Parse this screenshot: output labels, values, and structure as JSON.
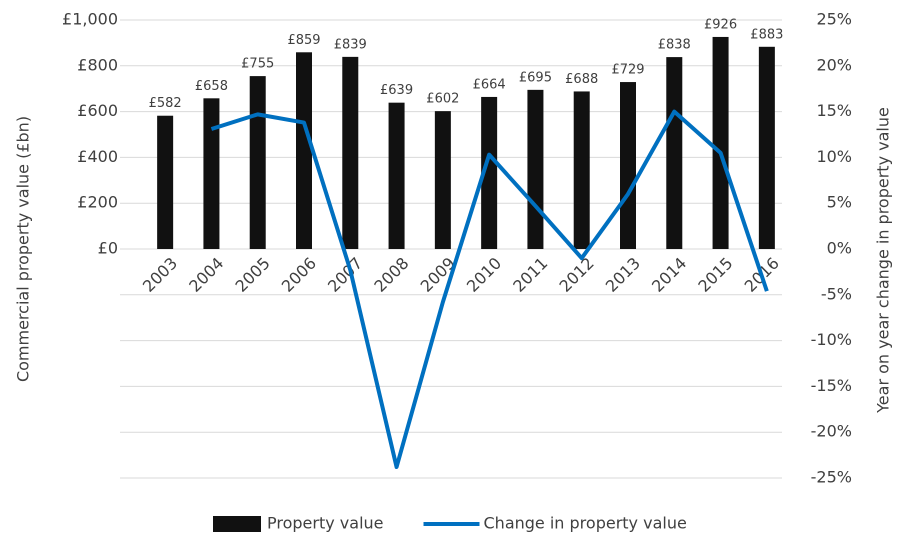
{
  "chart_data": {
    "type": "combo",
    "y_label": "Commercial property value (£bn)",
    "y2_label": "Year on year change in property value",
    "categories": [
      "2003",
      "2004",
      "2005",
      "2006",
      "2007",
      "2008",
      "2009",
      "2010",
      "2011",
      "2012",
      "2013",
      "2014",
      "2015",
      "2016"
    ],
    "series": [
      {
        "name": "Property value",
        "type": "bar",
        "color": "#111111",
        "values": [
          582,
          658,
          755,
          859,
          839,
          639,
          602,
          664,
          695,
          688,
          729,
          838,
          926,
          883
        ],
        "value_labels": [
          "£582",
          "£658",
          "£755",
          "£859",
          "£839",
          "£639",
          "£602",
          "£664",
          "£695",
          "£688",
          "£729",
          "£838",
          "£926",
          "£883"
        ]
      },
      {
        "name": "Change in property value",
        "type": "line",
        "color": "#0070c0",
        "axis": "y2",
        "values": [
          null,
          13.1,
          14.7,
          13.8,
          -2.3,
          -23.8,
          -5.8,
          10.3,
          4.7,
          -1.0,
          6.0,
          15.0,
          10.5,
          -4.6
        ]
      }
    ],
    "ylim": [
      -1000,
      1000
    ],
    "yticks": [
      {
        "value": 0,
        "label": "£0"
      },
      {
        "value": 200,
        "label": "£200"
      },
      {
        "value": 400,
        "label": "£400"
      },
      {
        "value": 600,
        "label": "£600"
      },
      {
        "value": 800,
        "label": "£800"
      },
      {
        "value": 1000,
        "label": "£1,000"
      }
    ],
    "y2lim": [
      -25,
      25
    ],
    "y2ticks": [
      {
        "value": -25,
        "label": "-25%"
      },
      {
        "value": -20,
        "label": "-20%"
      },
      {
        "value": -15,
        "label": "-15%"
      },
      {
        "value": -10,
        "label": "-10%"
      },
      {
        "value": -5,
        "label": "-5%"
      },
      {
        "value": 0,
        "label": "0%"
      },
      {
        "value": 5,
        "label": "5%"
      },
      {
        "value": 10,
        "label": "10%"
      },
      {
        "value": 15,
        "label": "15%"
      },
      {
        "value": 20,
        "label": "20%"
      },
      {
        "value": 25,
        "label": "25%"
      }
    ],
    "grid": true,
    "legend": "bottom"
  }
}
